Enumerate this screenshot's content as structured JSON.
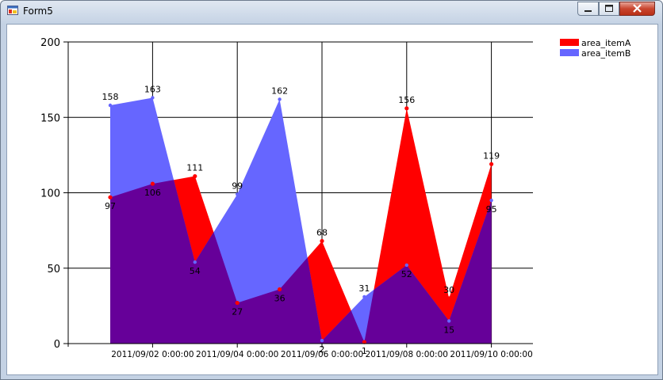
{
  "window": {
    "title": "Form5"
  },
  "chart_data": {
    "type": "area",
    "x": [
      "2011/09/01",
      "2011/09/02",
      "2011/09/03",
      "2011/09/04",
      "2011/09/05",
      "2011/09/06",
      "2011/09/07",
      "2011/09/08",
      "2011/09/09",
      "2011/09/10"
    ],
    "x_tick_labels": [
      "2011/09/02 0:00:00",
      "2011/09/04 0:00:00",
      "2011/09/06 0:00:00",
      "2011/09/08 0:00:00",
      "2011/09/10 0:00:00"
    ],
    "y_ticks": [
      0,
      50,
      100,
      150,
      200
    ],
    "ylim": [
      0,
      200
    ],
    "grid": true,
    "legend_position": "top-right",
    "series": [
      {
        "name": "area_itemA",
        "color": "#ff0000",
        "values": [
          97,
          106,
          111,
          27,
          36,
          68,
          1,
          156,
          30,
          119
        ]
      },
      {
        "name": "area_itemB",
        "color": "#6666ff",
        "values": [
          158,
          163,
          54,
          99,
          162,
          2,
          31,
          52,
          15,
          95
        ]
      }
    ],
    "overlap_color": "#660099"
  }
}
